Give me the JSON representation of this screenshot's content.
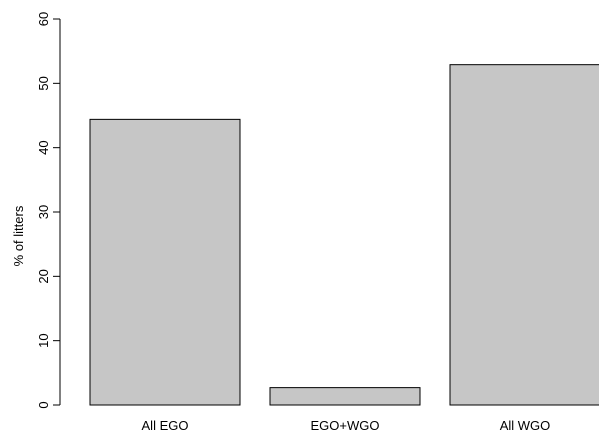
{
  "chart_data": {
    "type": "bar",
    "title": "",
    "xlabel": "",
    "ylabel": "% of litters",
    "categories": [
      "All EGO",
      "EGO+WGO",
      "All WGO"
    ],
    "values": [
      44.4,
      2.7,
      52.9
    ],
    "ylim": [
      0,
      60
    ],
    "yticks": [
      0,
      10,
      20,
      30,
      40,
      50,
      60
    ],
    "grid": false,
    "legend": "none",
    "colors": {
      "bar_fill": "#c6c6c6",
      "bar_stroke": "#000000"
    }
  }
}
